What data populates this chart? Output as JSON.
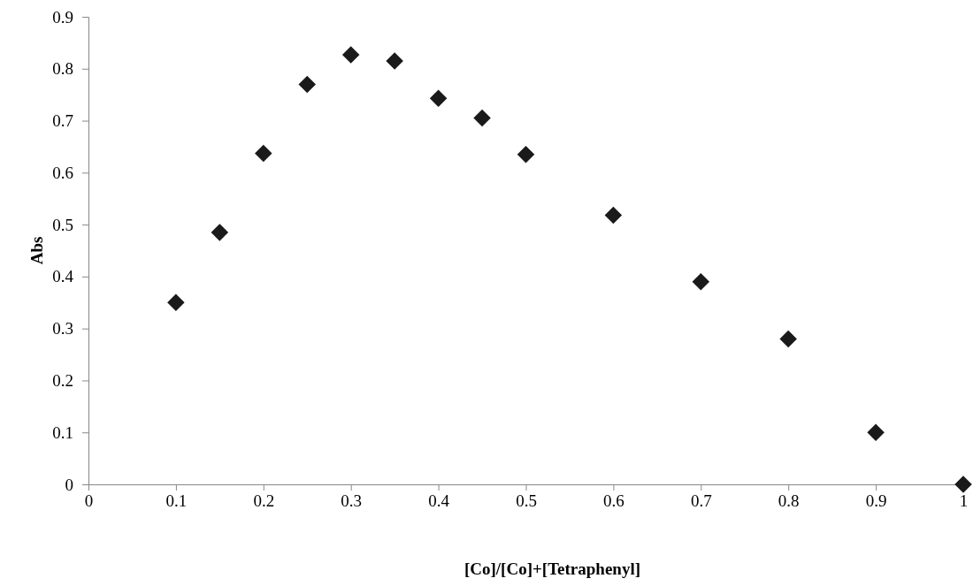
{
  "chart_data": {
    "type": "scatter",
    "xlabel": "[Co]/[Co]+[Tetraphenyl]",
    "ylabel": "Abs",
    "x": [
      0.1,
      0.15,
      0.2,
      0.25,
      0.3,
      0.35,
      0.4,
      0.45,
      0.5,
      0.6,
      0.7,
      0.8,
      0.9,
      1
    ],
    "series": [
      {
        "color": "#1a1a1a",
        "values": [
          0.35,
          0.485,
          0.637,
          0.77,
          0.827,
          0.815,
          0.743,
          0.705,
          0.635,
          0.518,
          0.39,
          0.28,
          0.1,
          0
        ]
      }
    ],
    "xlim": [
      0,
      1
    ],
    "xticks": [
      0,
      0.1,
      0.2,
      0.3,
      0.4,
      0.5,
      0.6,
      0.7,
      0.8,
      0.9,
      1
    ],
    "ylim": [
      0,
      0.9
    ],
    "yticks": [
      0,
      0.1,
      0.2,
      0.3,
      0.4,
      0.5,
      0.6,
      0.7,
      0.8,
      0.9
    ],
    "marker": "diamond"
  }
}
